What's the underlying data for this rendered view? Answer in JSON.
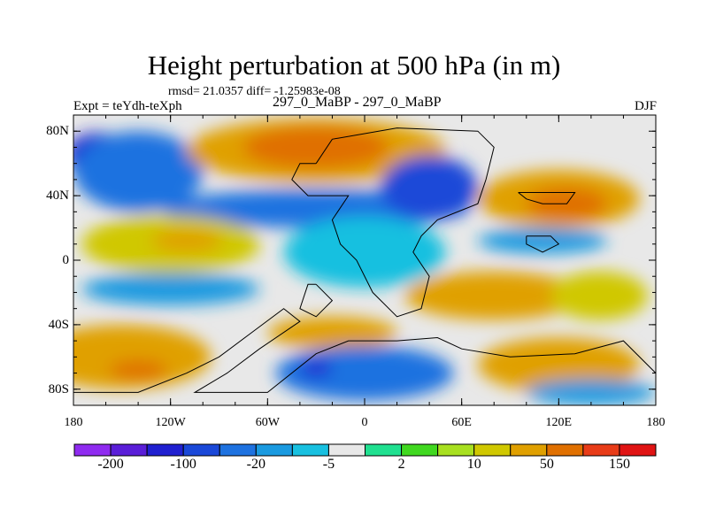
{
  "title": "Height perturbation at 500 hPa (in m)",
  "stats": "rmsd= 21.0357 diff= -1.25983e-08",
  "left_label": "Expt = teYdh-teXph",
  "center_label": "297_0_MaBP - 297_0_MaBP",
  "right_label": "DJF",
  "chart_data": {
    "type": "heatmap",
    "title": "Height perturbation at 500 hPa (in m)",
    "xlabel": "",
    "ylabel": "",
    "xlim": [
      -180,
      180
    ],
    "ylim": [
      -90,
      90
    ],
    "x_ticks": [
      {
        "value": -180,
        "label": "180"
      },
      {
        "value": -120,
        "label": "120W"
      },
      {
        "value": -60,
        "label": "60W"
      },
      {
        "value": 0,
        "label": "0"
      },
      {
        "value": 60,
        "label": "60E"
      },
      {
        "value": 120,
        "label": "120E"
      },
      {
        "value": 180,
        "label": "180"
      }
    ],
    "y_ticks": [
      {
        "value": 80,
        "label": "80N"
      },
      {
        "value": 40,
        "label": "40N"
      },
      {
        "value": 0,
        "label": "0"
      },
      {
        "value": -40,
        "label": "40S"
      },
      {
        "value": -80,
        "label": "80S"
      }
    ],
    "colorbar": {
      "levels": [
        -200,
        -150,
        -100,
        -50,
        -20,
        -10,
        -5,
        -2,
        2,
        5,
        10,
        20,
        50,
        100,
        150,
        200
      ],
      "labels": [
        {
          "after_bin": 0,
          "label": "-200"
        },
        {
          "after_bin": 2,
          "label": "-100"
        },
        {
          "after_bin": 4,
          "label": "-20"
        },
        {
          "after_bin": 6,
          "label": "-5"
        },
        {
          "after_bin": 8,
          "label": "2"
        },
        {
          "after_bin": 10,
          "label": "10"
        },
        {
          "after_bin": 12,
          "label": "50"
        },
        {
          "after_bin": 14,
          "label": "150"
        }
      ],
      "colors": [
        "#8f2bf0",
        "#5a1ed8",
        "#2020d0",
        "#1a48d8",
        "#1e72e0",
        "#1a9ae0",
        "#18c0e0",
        "#e8e8e8",
        "#20e090",
        "#40d820",
        "#a8e020",
        "#d0c800",
        "#e0a000",
        "#e07000",
        "#e83c18",
        "#e01414"
      ]
    },
    "anomaly_regions": [
      {
        "lon": -165,
        "lat": 65,
        "rlon": 20,
        "rlat": 14,
        "value": -110
      },
      {
        "lon": -140,
        "lat": 55,
        "rlon": 40,
        "rlat": 25,
        "value": -40
      },
      {
        "lon": -30,
        "lat": 68,
        "rlon": 80,
        "rlat": 20,
        "value": 40
      },
      {
        "lon": -30,
        "lat": 70,
        "rlon": 45,
        "rlat": 13,
        "value": 70
      },
      {
        "lon": -30,
        "lat": 32,
        "rlon": 95,
        "rlat": 12,
        "value": -40
      },
      {
        "lon": 40,
        "lat": 45,
        "rlon": 30,
        "rlat": 20,
        "value": -60
      },
      {
        "lon": 120,
        "lat": 38,
        "rlon": 50,
        "rlat": 18,
        "value": 35
      },
      {
        "lon": 125,
        "lat": 35,
        "rlon": 25,
        "rlat": 10,
        "value": 70
      },
      {
        "lon": 110,
        "lat": 12,
        "rlon": 40,
        "rlat": 8,
        "value": -12
      },
      {
        "lon": -120,
        "lat": 10,
        "rlon": 55,
        "rlat": 18,
        "value": 15
      },
      {
        "lon": -110,
        "lat": 12,
        "rlon": 22,
        "rlat": 7,
        "value": 35
      },
      {
        "lon": -120,
        "lat": -18,
        "rlon": 55,
        "rlat": 10,
        "value": -12
      },
      {
        "lon": 0,
        "lat": 5,
        "rlon": 50,
        "rlat": 22,
        "value": -8
      },
      {
        "lon": 80,
        "lat": -22,
        "rlon": 55,
        "rlat": 15,
        "value": 25
      },
      {
        "lon": 145,
        "lat": -22,
        "rlon": 30,
        "rlat": 15,
        "value": 15
      },
      {
        "lon": -150,
        "lat": -60,
        "rlon": 55,
        "rlat": 20,
        "value": 30
      },
      {
        "lon": -140,
        "lat": -68,
        "rlon": 18,
        "rlat": 6,
        "value": 70
      },
      {
        "lon": -20,
        "lat": -45,
        "rlon": 40,
        "rlat": 10,
        "value": 35
      },
      {
        "lon": 0,
        "lat": -70,
        "rlon": 55,
        "rlat": 17,
        "value": -40
      },
      {
        "lon": -30,
        "lat": -67,
        "rlon": 10,
        "rlat": 5,
        "value": -110
      },
      {
        "lon": 120,
        "lat": -65,
        "rlon": 50,
        "rlat": 17,
        "value": 30
      },
      {
        "lon": 140,
        "lat": -82,
        "rlon": 40,
        "rlat": 8,
        "value": -15
      }
    ]
  }
}
